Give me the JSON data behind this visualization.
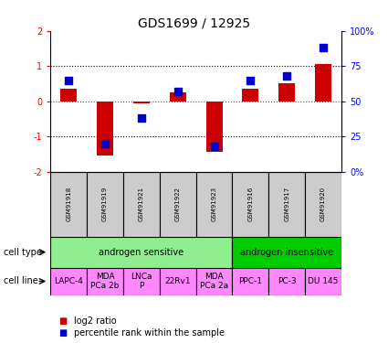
{
  "title": "GDS1699 / 12925",
  "samples": [
    "GSM91918",
    "GSM91919",
    "GSM91921",
    "GSM91922",
    "GSM91923",
    "GSM91916",
    "GSM91917",
    "GSM91920"
  ],
  "log2_ratio": [
    0.35,
    -1.55,
    -0.07,
    0.25,
    -1.45,
    0.35,
    0.5,
    1.05
  ],
  "percentile_rank": [
    65,
    20,
    38,
    57,
    18,
    65,
    68,
    88
  ],
  "ylim": [
    -2,
    2
  ],
  "y2lim": [
    0,
    100
  ],
  "cell_type_groups": [
    {
      "label": "androgen sensitive",
      "start": 0,
      "end": 5,
      "color": "#90ee90"
    },
    {
      "label": "androgen insensitive",
      "start": 5,
      "end": 8,
      "color": "#00cc00"
    }
  ],
  "cell_lines": [
    {
      "label": "LAPC-4",
      "start": 0,
      "end": 1
    },
    {
      "label": "MDA\nPCa 2b",
      "start": 1,
      "end": 2
    },
    {
      "label": "LNCa\nP",
      "start": 2,
      "end": 3
    },
    {
      "label": "22Rv1",
      "start": 3,
      "end": 4
    },
    {
      "label": "MDA\nPCa 2a",
      "start": 4,
      "end": 5
    },
    {
      "label": "PPC-1",
      "start": 5,
      "end": 6
    },
    {
      "label": "PC-3",
      "start": 6,
      "end": 7
    },
    {
      "label": "DU 145",
      "start": 7,
      "end": 8
    }
  ],
  "cell_line_color": "#ff88ff",
  "sample_box_color": "#cccccc",
  "bar_color": "#cc0000",
  "dot_color": "#0000cc",
  "bar_width": 0.45,
  "dot_size": 30,
  "legend_bar_label": "log2 ratio",
  "legend_dot_label": "percentile rank within the sample",
  "cell_type_label": "cell type",
  "cell_line_label": "cell line",
  "title_fontsize": 10,
  "tick_fontsize": 7,
  "label_fontsize": 7,
  "sample_fontsize": 5,
  "celltype_fontsize": 7,
  "legend_fontsize": 7
}
